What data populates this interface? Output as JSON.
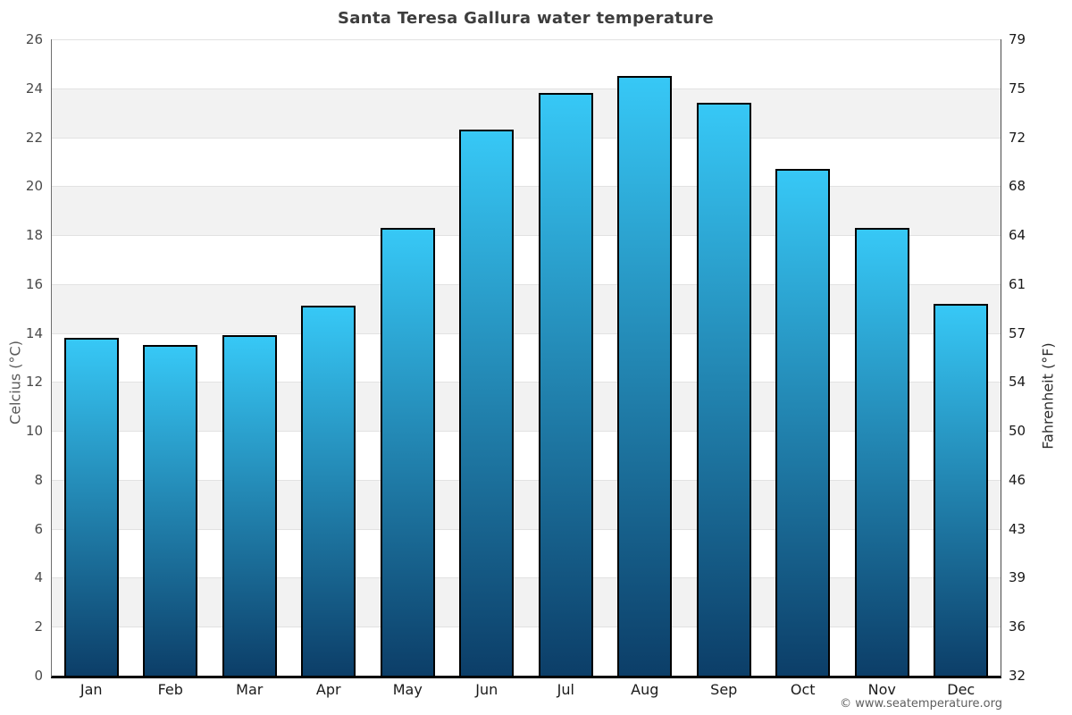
{
  "chart_data": {
    "type": "bar",
    "title": "Santa Teresa Gallura water temperature",
    "categories": [
      "Jan",
      "Feb",
      "Mar",
      "Apr",
      "May",
      "Jun",
      "Jul",
      "Aug",
      "Sep",
      "Oct",
      "Nov",
      "Dec"
    ],
    "values": [
      13.8,
      13.5,
      13.9,
      15.1,
      18.3,
      22.3,
      23.8,
      24.5,
      23.4,
      20.7,
      18.3,
      15.2
    ],
    "unit": "°C",
    "ylabel_left": "Celcius (°C)",
    "ylabel_right": "Fahrenheit (°F)",
    "ylim": [
      0,
      26
    ],
    "yticks_celsius": [
      26,
      24,
      22,
      20,
      18,
      16,
      14,
      12,
      10,
      8,
      6,
      4,
      2,
      0
    ],
    "yticks_fahrenheit": [
      79,
      75,
      72,
      68,
      64,
      61,
      57,
      54,
      50,
      46,
      43,
      39,
      36,
      32
    ],
    "grid": "horizontal-alternating-bands",
    "legend": "none",
    "footer": "© www.seatemperature.org",
    "colors": {
      "bar_gradient_top": "#37c8f6",
      "bar_gradient_bottom": "#0c3e68",
      "bar_border": "#000000",
      "band_light": "#ffffff",
      "band_dark": "#f2f2f2",
      "gridline": "#e2e2e2",
      "baseline": "#000000",
      "title_color": "#3d3d3d"
    }
  }
}
